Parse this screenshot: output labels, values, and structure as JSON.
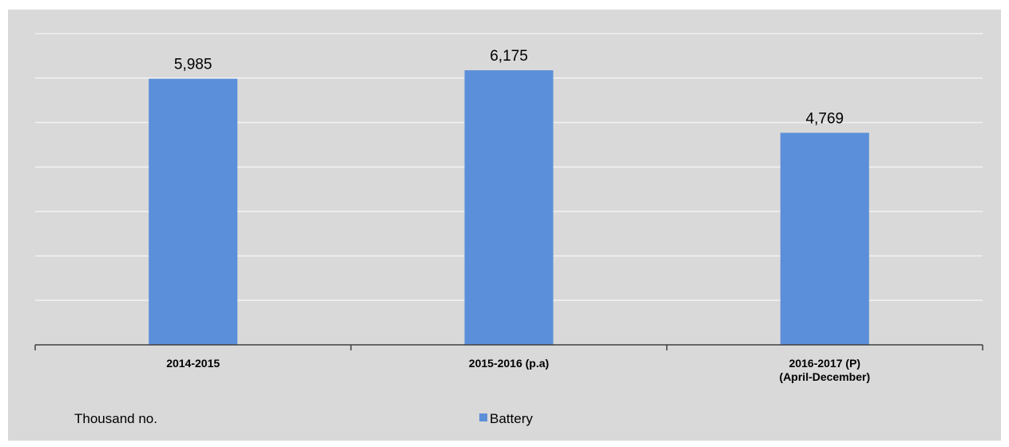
{
  "chart_data": {
    "type": "bar",
    "categories": [
      [
        "2014-2015"
      ],
      [
        "2015-2016 (p.a)"
      ],
      [
        "2016-2017 (P)",
        "(April-December)"
      ]
    ],
    "series": [
      {
        "name": "Battery",
        "values": [
          5985,
          6175,
          4769
        ],
        "value_labels": [
          "5,985",
          "6,175",
          "4,769"
        ],
        "color": "#5b8fd9"
      }
    ],
    "unit_label": "Thousand no.",
    "ylim": [
      0,
      7000
    ],
    "grid": true,
    "legend_position": "bottom-center",
    "colors": {
      "plot_background": "#d9d9d9",
      "gridline": "#f2f2f2",
      "axis": "#404040"
    }
  }
}
